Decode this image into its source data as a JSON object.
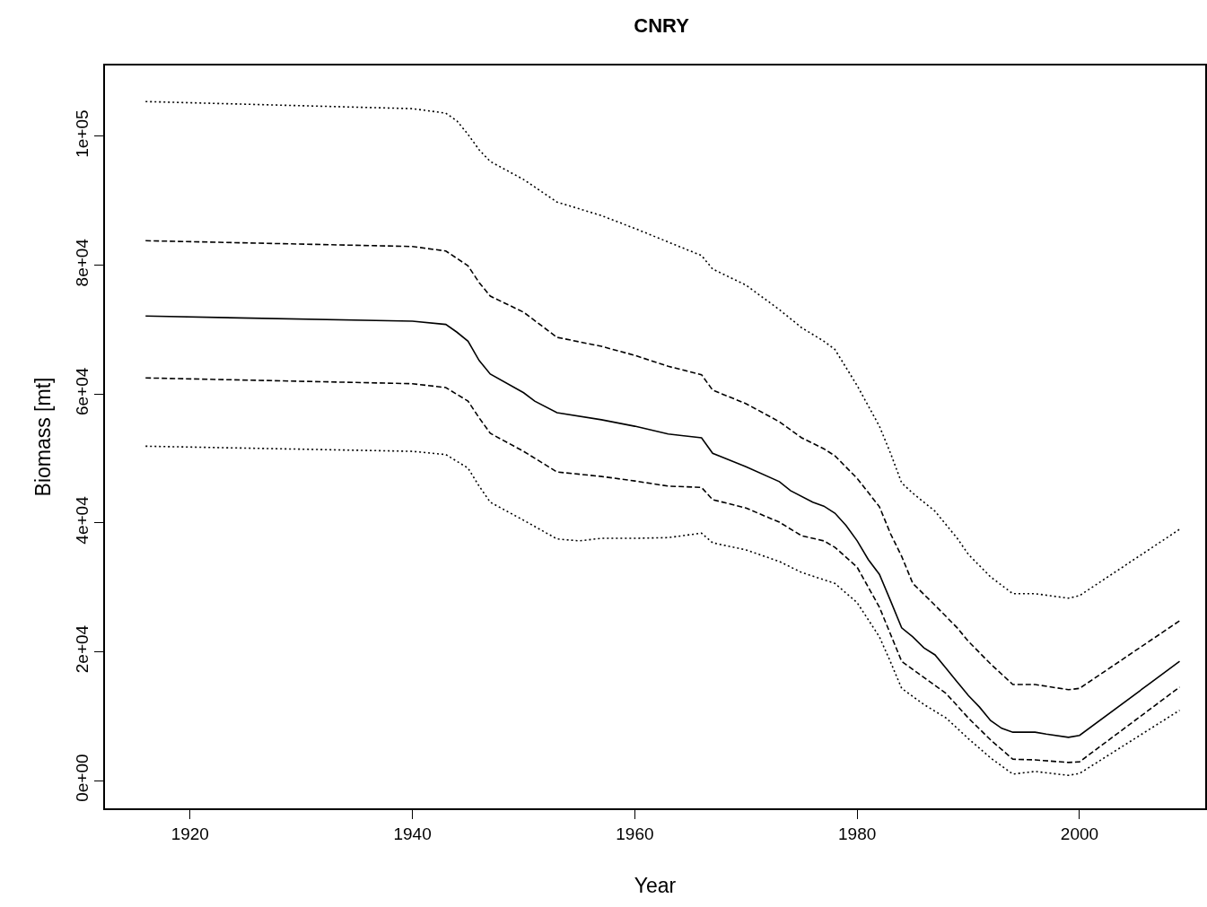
{
  "chart_data": {
    "type": "line",
    "title": "CNRY",
    "xlabel": "Year",
    "ylabel": "Biomass [mt]",
    "xlim": [
      1912.35,
      2011.3
    ],
    "ylim": [
      -4318,
      111000
    ],
    "xticks": [
      1920,
      1940,
      1960,
      1980,
      2000
    ],
    "yticks": [
      {
        "value": 0,
        "label": "0e+00"
      },
      {
        "value": 20000,
        "label": "2e+04"
      },
      {
        "value": 40000,
        "label": "4e+04"
      },
      {
        "value": 60000,
        "label": "6e+04"
      },
      {
        "value": 80000,
        "label": "8e+04"
      },
      {
        "value": 100000,
        "label": "1e+05"
      }
    ],
    "grid": false,
    "marker": "none",
    "series": [
      {
        "color": "#000000",
        "line_style": "dotted",
        "x": [
          1916,
          1940,
          1943,
          1944,
          1945,
          1946,
          1947,
          1950,
          1953,
          1957,
          1960,
          1963,
          1966,
          1967,
          1970,
          1973,
          1975,
          1977,
          1978,
          1980,
          1982,
          1983,
          1984,
          1985,
          1987,
          1989,
          1990,
          1992,
          1994,
          1996,
          1999,
          2000,
          2009
        ],
        "values": [
          105400,
          104300,
          103600,
          102400,
          100300,
          97900,
          96100,
          93300,
          89800,
          87700,
          85700,
          83600,
          81500,
          79400,
          76900,
          73100,
          70300,
          68200,
          66900,
          61300,
          55000,
          50800,
          46200,
          44600,
          41800,
          37600,
          35100,
          31600,
          29000,
          29000,
          28300,
          28700,
          39000
        ]
      },
      {
        "color": "#000000",
        "line_style": "dashed",
        "x": [
          1916,
          1940,
          1943,
          1945,
          1946,
          1947,
          1950,
          1953,
          1957,
          1960,
          1963,
          1966,
          1967,
          1970,
          1973,
          1975,
          1977,
          1978,
          1980,
          1982,
          1983,
          1984,
          1985,
          1987,
          1989,
          1990,
          1992,
          1994,
          1996,
          1999,
          2000,
          2009
        ],
        "values": [
          83800,
          82900,
          82200,
          79900,
          77300,
          75200,
          72700,
          68800,
          67400,
          66000,
          64300,
          63000,
          60600,
          58500,
          55700,
          53200,
          51500,
          50400,
          46900,
          42500,
          38300,
          34800,
          30600,
          27200,
          23700,
          21600,
          18100,
          14900,
          14900,
          14100,
          14300,
          24800
        ]
      },
      {
        "color": "#000000",
        "line_style": "solid",
        "x": [
          1916,
          1940,
          1943,
          1944,
          1945,
          1946,
          1947,
          1950,
          1951,
          1953,
          1957,
          1960,
          1963,
          1966,
          1967,
          1968,
          1970,
          1973,
          1974,
          1976,
          1977,
          1978,
          1979,
          1980,
          1981,
          1982,
          1983,
          1984,
          1985,
          1986,
          1987,
          1988,
          1989,
          1990,
          1991,
          1992,
          1993,
          1994,
          1996,
          1997,
          1999,
          2000,
          2009
        ],
        "values": [
          72100,
          71300,
          70800,
          69600,
          68200,
          65200,
          63100,
          60200,
          58900,
          57100,
          56000,
          55000,
          53800,
          53200,
          50800,
          50100,
          48700,
          46400,
          45000,
          43200,
          42600,
          41500,
          39600,
          37200,
          34300,
          32000,
          27900,
          23700,
          22300,
          20600,
          19500,
          17400,
          15300,
          13200,
          11400,
          9300,
          8100,
          7500,
          7500,
          7200,
          6700,
          7000,
          18500
        ]
      },
      {
        "color": "#000000",
        "line_style": "dashed",
        "x": [
          1916,
          1940,
          1943,
          1945,
          1946,
          1947,
          1950,
          1953,
          1957,
          1960,
          1963,
          1966,
          1967,
          1970,
          1973,
          1975,
          1977,
          1978,
          1980,
          1982,
          1983,
          1984,
          1986,
          1988,
          1990,
          1992,
          1994,
          1996,
          1999,
          2000,
          2009
        ],
        "values": [
          62500,
          61600,
          61000,
          58900,
          56300,
          53900,
          51100,
          47900,
          47200,
          46500,
          45700,
          45500,
          43600,
          42300,
          40100,
          38000,
          37200,
          36200,
          33100,
          26900,
          22700,
          18500,
          16000,
          13500,
          9700,
          6300,
          3300,
          3200,
          2800,
          2900,
          14500
        ]
      },
      {
        "color": "#000000",
        "line_style": "dotted",
        "x": [
          1916,
          1940,
          1943,
          1945,
          1946,
          1947,
          1950,
          1953,
          1955,
          1957,
          1960,
          1963,
          1966,
          1967,
          1970,
          1973,
          1975,
          1978,
          1980,
          1982,
          1983,
          1984,
          1986,
          1988,
          1990,
          1992,
          1994,
          1996,
          1999,
          2000,
          2009
        ],
        "values": [
          51900,
          51100,
          50600,
          48500,
          45700,
          43200,
          40400,
          37500,
          37200,
          37600,
          37600,
          37700,
          38400,
          36900,
          35800,
          34000,
          32300,
          30600,
          27600,
          22300,
          18400,
          14300,
          11800,
          9700,
          6500,
          3500,
          1000,
          1400,
          800,
          1100,
          10900
        ]
      }
    ]
  }
}
